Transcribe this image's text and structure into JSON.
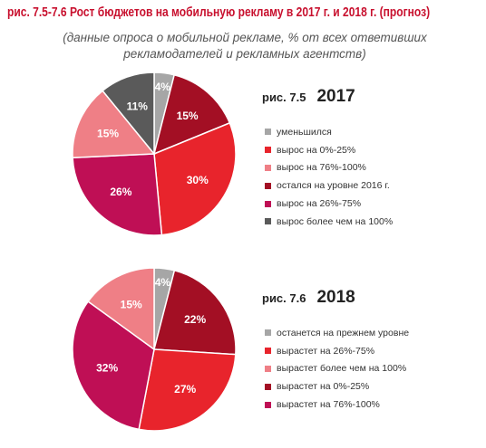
{
  "header": {
    "title": "рис. 7.5-7.6 Рост бюджетов на мобильную рекламу в 2017 г. и 2018 г. (прогноз)",
    "subtitle_line1": "(данные опроса о мобильной рекламе, % от всех ответивших",
    "subtitle_line2": "рекламодателей и рекламных агентств)"
  },
  "chart_data": [
    {
      "type": "pie",
      "figure": "рис. 7.5",
      "title": "2017",
      "start_angle_deg": 0,
      "direction": "clockwise",
      "slices": [
        {
          "label": "уменьшился",
          "value": 4,
          "display": "4%",
          "color": "#a6a6a6"
        },
        {
          "label": "остался на уровне 2016 г.",
          "value": 15,
          "display": "15%",
          "color": "#a30f24"
        },
        {
          "label": "вырос на 0%-25%",
          "value": 30,
          "display": "30%",
          "color": "#e8242c"
        },
        {
          "label": "вырос на 26%-75%",
          "value": 26,
          "display": "26%",
          "color": "#bf0f55"
        },
        {
          "label": "вырос на 76%-100%",
          "value": 15,
          "display": "15%",
          "color": "#ef7f86"
        },
        {
          "label": "вырос более чем на 100%",
          "value": 11,
          "display": "11%",
          "color": "#5a5a5a"
        }
      ],
      "legend": [
        {
          "label": "уменьшился",
          "color": "#a6a6a6"
        },
        {
          "label": "вырос на 0%-25%",
          "color": "#e8242c"
        },
        {
          "label": "вырос на 76%-100%",
          "color": "#ef7f86"
        },
        {
          "label": "остался на уровне 2016 г.",
          "color": "#a30f24"
        },
        {
          "label": "вырос на 26%-75%",
          "color": "#bf0f55"
        },
        {
          "label": "вырос более чем на 100%",
          "color": "#5a5a5a"
        }
      ]
    },
    {
      "type": "pie",
      "figure": "рис. 7.6",
      "title": "2018",
      "start_angle_deg": 0,
      "direction": "clockwise",
      "slices": [
        {
          "label": "останется на прежнем уровне",
          "value": 4,
          "display": "4%",
          "color": "#a6a6a6"
        },
        {
          "label": "вырастет на 0%-25%",
          "value": 22,
          "display": "22%",
          "color": "#a30f24"
        },
        {
          "label": "вырастет на 26%-75%",
          "value": 27,
          "display": "27%",
          "color": "#e8242c"
        },
        {
          "label": "вырастет на 76%-100%",
          "value": 32,
          "display": "32%",
          "color": "#bf0f55"
        },
        {
          "label": "вырастет более чем на 100%",
          "value": 15,
          "display": "15%",
          "color": "#ef7f86"
        }
      ],
      "legend": [
        {
          "label": "останется на прежнем уровне",
          "color": "#a6a6a6"
        },
        {
          "label": "вырастет на 26%-75%",
          "color": "#e8242c"
        },
        {
          "label": "вырастет более чем на 100%",
          "color": "#ef7f86"
        },
        {
          "label": "вырастет на 0%-25%",
          "color": "#a30f24"
        },
        {
          "label": "вырастет на 76%-100%",
          "color": "#bf0f55"
        }
      ]
    }
  ]
}
